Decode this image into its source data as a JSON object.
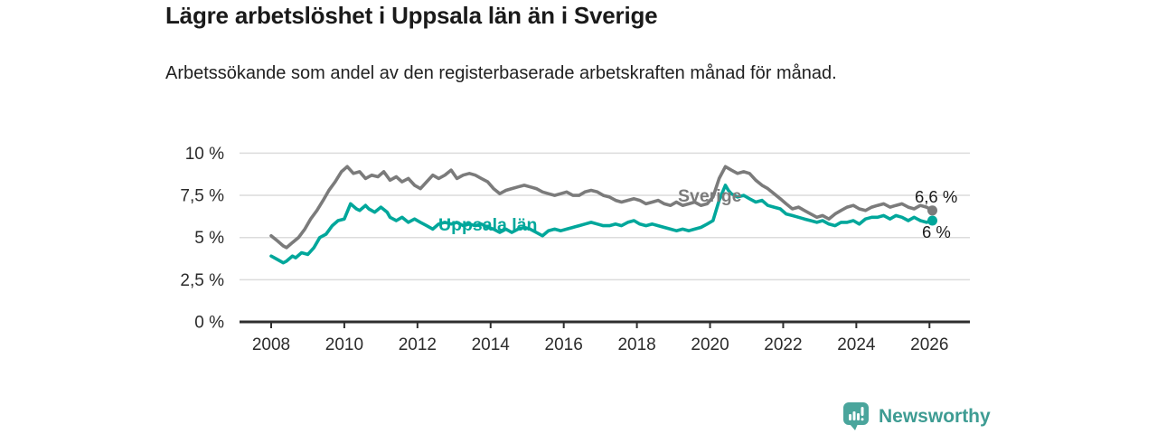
{
  "header": {
    "title": "Lägre arbetslöshet i Uppsala län än i Sverige",
    "subtitle": "Arbetssökande som andel av den registerbaserade arbetskraften månad för månad."
  },
  "footer": {
    "brand": "Newsworthy",
    "brand_icon": "bar-chart-speech-bubble-icon"
  },
  "colors": {
    "sverige_line": "#7b7b7b",
    "uppsala_line": "#00a79b",
    "brand_teal": "#4aa59c",
    "grid": "#dcdcdc",
    "axis": "#2e2e2e",
    "text_dark": "#1a1a1a"
  },
  "chart_data": {
    "type": "line",
    "title": "Lägre arbetslöshet i Uppsala län än i Sverige",
    "subtitle": "Arbetssökande som andel av den registerbaserade arbetskraften månad för månad.",
    "xlabel": "",
    "ylabel": "",
    "ylim": [
      0,
      10
    ],
    "xlim": [
      2007.8,
      2027.1
    ],
    "grid": "horizontal",
    "legend_position": "inline-labels-on-lines",
    "y_ticks": [
      {
        "value": 0,
        "label": "0 %"
      },
      {
        "value": 2.5,
        "label": "2,5 %"
      },
      {
        "value": 5,
        "label": "5 %"
      },
      {
        "value": 7.5,
        "label": "7,5 %"
      },
      {
        "value": 10,
        "label": "10 %"
      }
    ],
    "x_ticks": [
      2008,
      2010,
      2012,
      2014,
      2016,
      2018,
      2020,
      2022,
      2024,
      2026
    ],
    "series": [
      {
        "name": "Sverige",
        "inline_label": "Sverige",
        "end_label": "6,6 %",
        "end_value": 6.6,
        "color": "#7b7b7b",
        "points": [
          [
            2008.0,
            5.1
          ],
          [
            2008.17,
            4.8
          ],
          [
            2008.33,
            4.5
          ],
          [
            2008.42,
            4.4
          ],
          [
            2008.58,
            4.7
          ],
          [
            2008.75,
            5.0
          ],
          [
            2008.92,
            5.5
          ],
          [
            2009.08,
            6.1
          ],
          [
            2009.25,
            6.6
          ],
          [
            2009.42,
            7.2
          ],
          [
            2009.58,
            7.8
          ],
          [
            2009.75,
            8.3
          ],
          [
            2009.92,
            8.9
          ],
          [
            2010.08,
            9.2
          ],
          [
            2010.25,
            8.8
          ],
          [
            2010.42,
            8.9
          ],
          [
            2010.58,
            8.5
          ],
          [
            2010.75,
            8.7
          ],
          [
            2010.92,
            8.6
          ],
          [
            2011.08,
            8.9
          ],
          [
            2011.25,
            8.4
          ],
          [
            2011.42,
            8.6
          ],
          [
            2011.58,
            8.3
          ],
          [
            2011.75,
            8.5
          ],
          [
            2011.92,
            8.1
          ],
          [
            2012.08,
            7.9
          ],
          [
            2012.25,
            8.3
          ],
          [
            2012.42,
            8.7
          ],
          [
            2012.58,
            8.5
          ],
          [
            2012.75,
            8.7
          ],
          [
            2012.92,
            9.0
          ],
          [
            2013.08,
            8.5
          ],
          [
            2013.25,
            8.7
          ],
          [
            2013.42,
            8.8
          ],
          [
            2013.58,
            8.7
          ],
          [
            2013.75,
            8.5
          ],
          [
            2013.92,
            8.3
          ],
          [
            2014.08,
            7.9
          ],
          [
            2014.25,
            7.6
          ],
          [
            2014.42,
            7.8
          ],
          [
            2014.58,
            7.9
          ],
          [
            2014.75,
            8.0
          ],
          [
            2014.92,
            8.1
          ],
          [
            2015.08,
            8.0
          ],
          [
            2015.25,
            7.9
          ],
          [
            2015.42,
            7.7
          ],
          [
            2015.58,
            7.6
          ],
          [
            2015.75,
            7.5
          ],
          [
            2015.92,
            7.6
          ],
          [
            2016.08,
            7.7
          ],
          [
            2016.25,
            7.5
          ],
          [
            2016.42,
            7.5
          ],
          [
            2016.58,
            7.7
          ],
          [
            2016.75,
            7.8
          ],
          [
            2016.92,
            7.7
          ],
          [
            2017.08,
            7.5
          ],
          [
            2017.25,
            7.4
          ],
          [
            2017.42,
            7.2
          ],
          [
            2017.58,
            7.1
          ],
          [
            2017.75,
            7.2
          ],
          [
            2017.92,
            7.3
          ],
          [
            2018.08,
            7.2
          ],
          [
            2018.25,
            7.0
          ],
          [
            2018.42,
            7.1
          ],
          [
            2018.58,
            7.2
          ],
          [
            2018.75,
            7.0
          ],
          [
            2018.92,
            6.9
          ],
          [
            2019.08,
            7.1
          ],
          [
            2019.25,
            6.9
          ],
          [
            2019.42,
            7.0
          ],
          [
            2019.58,
            7.1
          ],
          [
            2019.75,
            6.9
          ],
          [
            2019.92,
            7.0
          ],
          [
            2020.08,
            7.4
          ],
          [
            2020.25,
            8.5
          ],
          [
            2020.42,
            9.2
          ],
          [
            2020.58,
            9.0
          ],
          [
            2020.75,
            8.8
          ],
          [
            2020.92,
            8.9
          ],
          [
            2021.08,
            8.8
          ],
          [
            2021.25,
            8.4
          ],
          [
            2021.42,
            8.1
          ],
          [
            2021.58,
            7.9
          ],
          [
            2021.75,
            7.6
          ],
          [
            2021.92,
            7.3
          ],
          [
            2022.08,
            7.0
          ],
          [
            2022.25,
            6.7
          ],
          [
            2022.42,
            6.8
          ],
          [
            2022.58,
            6.6
          ],
          [
            2022.75,
            6.4
          ],
          [
            2022.92,
            6.2
          ],
          [
            2023.08,
            6.3
          ],
          [
            2023.25,
            6.1
          ],
          [
            2023.42,
            6.4
          ],
          [
            2023.58,
            6.6
          ],
          [
            2023.75,
            6.8
          ],
          [
            2023.92,
            6.9
          ],
          [
            2024.08,
            6.7
          ],
          [
            2024.25,
            6.6
          ],
          [
            2024.42,
            6.8
          ],
          [
            2024.58,
            6.9
          ],
          [
            2024.75,
            7.0
          ],
          [
            2024.92,
            6.8
          ],
          [
            2025.08,
            6.9
          ],
          [
            2025.25,
            7.0
          ],
          [
            2025.42,
            6.8
          ],
          [
            2025.58,
            6.7
          ],
          [
            2025.75,
            6.9
          ],
          [
            2025.92,
            6.8
          ],
          [
            2026.08,
            6.6
          ]
        ]
      },
      {
        "name": "Uppsala län",
        "inline_label": "Uppsala län",
        "end_label": "6 %",
        "end_value": 6.0,
        "color": "#00a79b",
        "points": [
          [
            2008.0,
            3.9
          ],
          [
            2008.17,
            3.7
          ],
          [
            2008.33,
            3.5
          ],
          [
            2008.42,
            3.6
          ],
          [
            2008.58,
            3.9
          ],
          [
            2008.67,
            3.8
          ],
          [
            2008.83,
            4.1
          ],
          [
            2009.0,
            4.0
          ],
          [
            2009.17,
            4.4
          ],
          [
            2009.33,
            5.0
          ],
          [
            2009.5,
            5.2
          ],
          [
            2009.67,
            5.7
          ],
          [
            2009.83,
            6.0
          ],
          [
            2010.0,
            6.1
          ],
          [
            2010.17,
            7.0
          ],
          [
            2010.33,
            6.7
          ],
          [
            2010.42,
            6.6
          ],
          [
            2010.58,
            6.9
          ],
          [
            2010.67,
            6.7
          ],
          [
            2010.83,
            6.5
          ],
          [
            2011.0,
            6.8
          ],
          [
            2011.17,
            6.5
          ],
          [
            2011.25,
            6.2
          ],
          [
            2011.42,
            6.0
          ],
          [
            2011.58,
            6.2
          ],
          [
            2011.75,
            5.9
          ],
          [
            2011.92,
            6.1
          ],
          [
            2012.08,
            5.9
          ],
          [
            2012.25,
            5.7
          ],
          [
            2012.42,
            5.5
          ],
          [
            2012.58,
            5.8
          ],
          [
            2012.75,
            5.9
          ],
          [
            2012.92,
            5.8
          ],
          [
            2013.08,
            5.9
          ],
          [
            2013.25,
            5.7
          ],
          [
            2013.42,
            5.8
          ],
          [
            2013.58,
            5.7
          ],
          [
            2013.75,
            5.8
          ],
          [
            2013.92,
            5.6
          ],
          [
            2014.08,
            5.5
          ],
          [
            2014.25,
            5.3
          ],
          [
            2014.42,
            5.5
          ],
          [
            2014.58,
            5.3
          ],
          [
            2014.75,
            5.5
          ],
          [
            2014.92,
            5.6
          ],
          [
            2015.08,
            5.5
          ],
          [
            2015.25,
            5.3
          ],
          [
            2015.42,
            5.1
          ],
          [
            2015.58,
            5.4
          ],
          [
            2015.75,
            5.5
          ],
          [
            2015.92,
            5.4
          ],
          [
            2016.08,
            5.5
          ],
          [
            2016.25,
            5.6
          ],
          [
            2016.42,
            5.7
          ],
          [
            2016.58,
            5.8
          ],
          [
            2016.75,
            5.9
          ],
          [
            2016.92,
            5.8
          ],
          [
            2017.08,
            5.7
          ],
          [
            2017.25,
            5.7
          ],
          [
            2017.42,
            5.8
          ],
          [
            2017.58,
            5.7
          ],
          [
            2017.75,
            5.9
          ],
          [
            2017.92,
            6.0
          ],
          [
            2018.08,
            5.8
          ],
          [
            2018.25,
            5.7
          ],
          [
            2018.42,
            5.8
          ],
          [
            2018.58,
            5.7
          ],
          [
            2018.75,
            5.6
          ],
          [
            2018.92,
            5.5
          ],
          [
            2019.08,
            5.4
          ],
          [
            2019.25,
            5.5
          ],
          [
            2019.42,
            5.4
          ],
          [
            2019.58,
            5.5
          ],
          [
            2019.75,
            5.6
          ],
          [
            2019.92,
            5.8
          ],
          [
            2020.08,
            6.0
          ],
          [
            2020.25,
            7.2
          ],
          [
            2020.42,
            8.1
          ],
          [
            2020.5,
            7.8
          ],
          [
            2020.58,
            7.6
          ],
          [
            2020.75,
            7.4
          ],
          [
            2020.92,
            7.5
          ],
          [
            2021.08,
            7.3
          ],
          [
            2021.25,
            7.1
          ],
          [
            2021.42,
            7.2
          ],
          [
            2021.58,
            6.9
          ],
          [
            2021.75,
            6.8
          ],
          [
            2021.92,
            6.7
          ],
          [
            2022.08,
            6.4
          ],
          [
            2022.25,
            6.3
          ],
          [
            2022.42,
            6.2
          ],
          [
            2022.58,
            6.1
          ],
          [
            2022.75,
            6.0
          ],
          [
            2022.92,
            5.9
          ],
          [
            2023.08,
            6.0
          ],
          [
            2023.25,
            5.8
          ],
          [
            2023.42,
            5.7
          ],
          [
            2023.58,
            5.9
          ],
          [
            2023.75,
            5.9
          ],
          [
            2023.92,
            6.0
          ],
          [
            2024.08,
            5.8
          ],
          [
            2024.25,
            6.1
          ],
          [
            2024.42,
            6.2
          ],
          [
            2024.58,
            6.2
          ],
          [
            2024.75,
            6.3
          ],
          [
            2024.92,
            6.1
          ],
          [
            2025.08,
            6.3
          ],
          [
            2025.25,
            6.2
          ],
          [
            2025.42,
            6.0
          ],
          [
            2025.58,
            6.2
          ],
          [
            2025.75,
            6.0
          ],
          [
            2025.92,
            5.9
          ],
          [
            2026.08,
            6.0
          ]
        ]
      }
    ]
  }
}
